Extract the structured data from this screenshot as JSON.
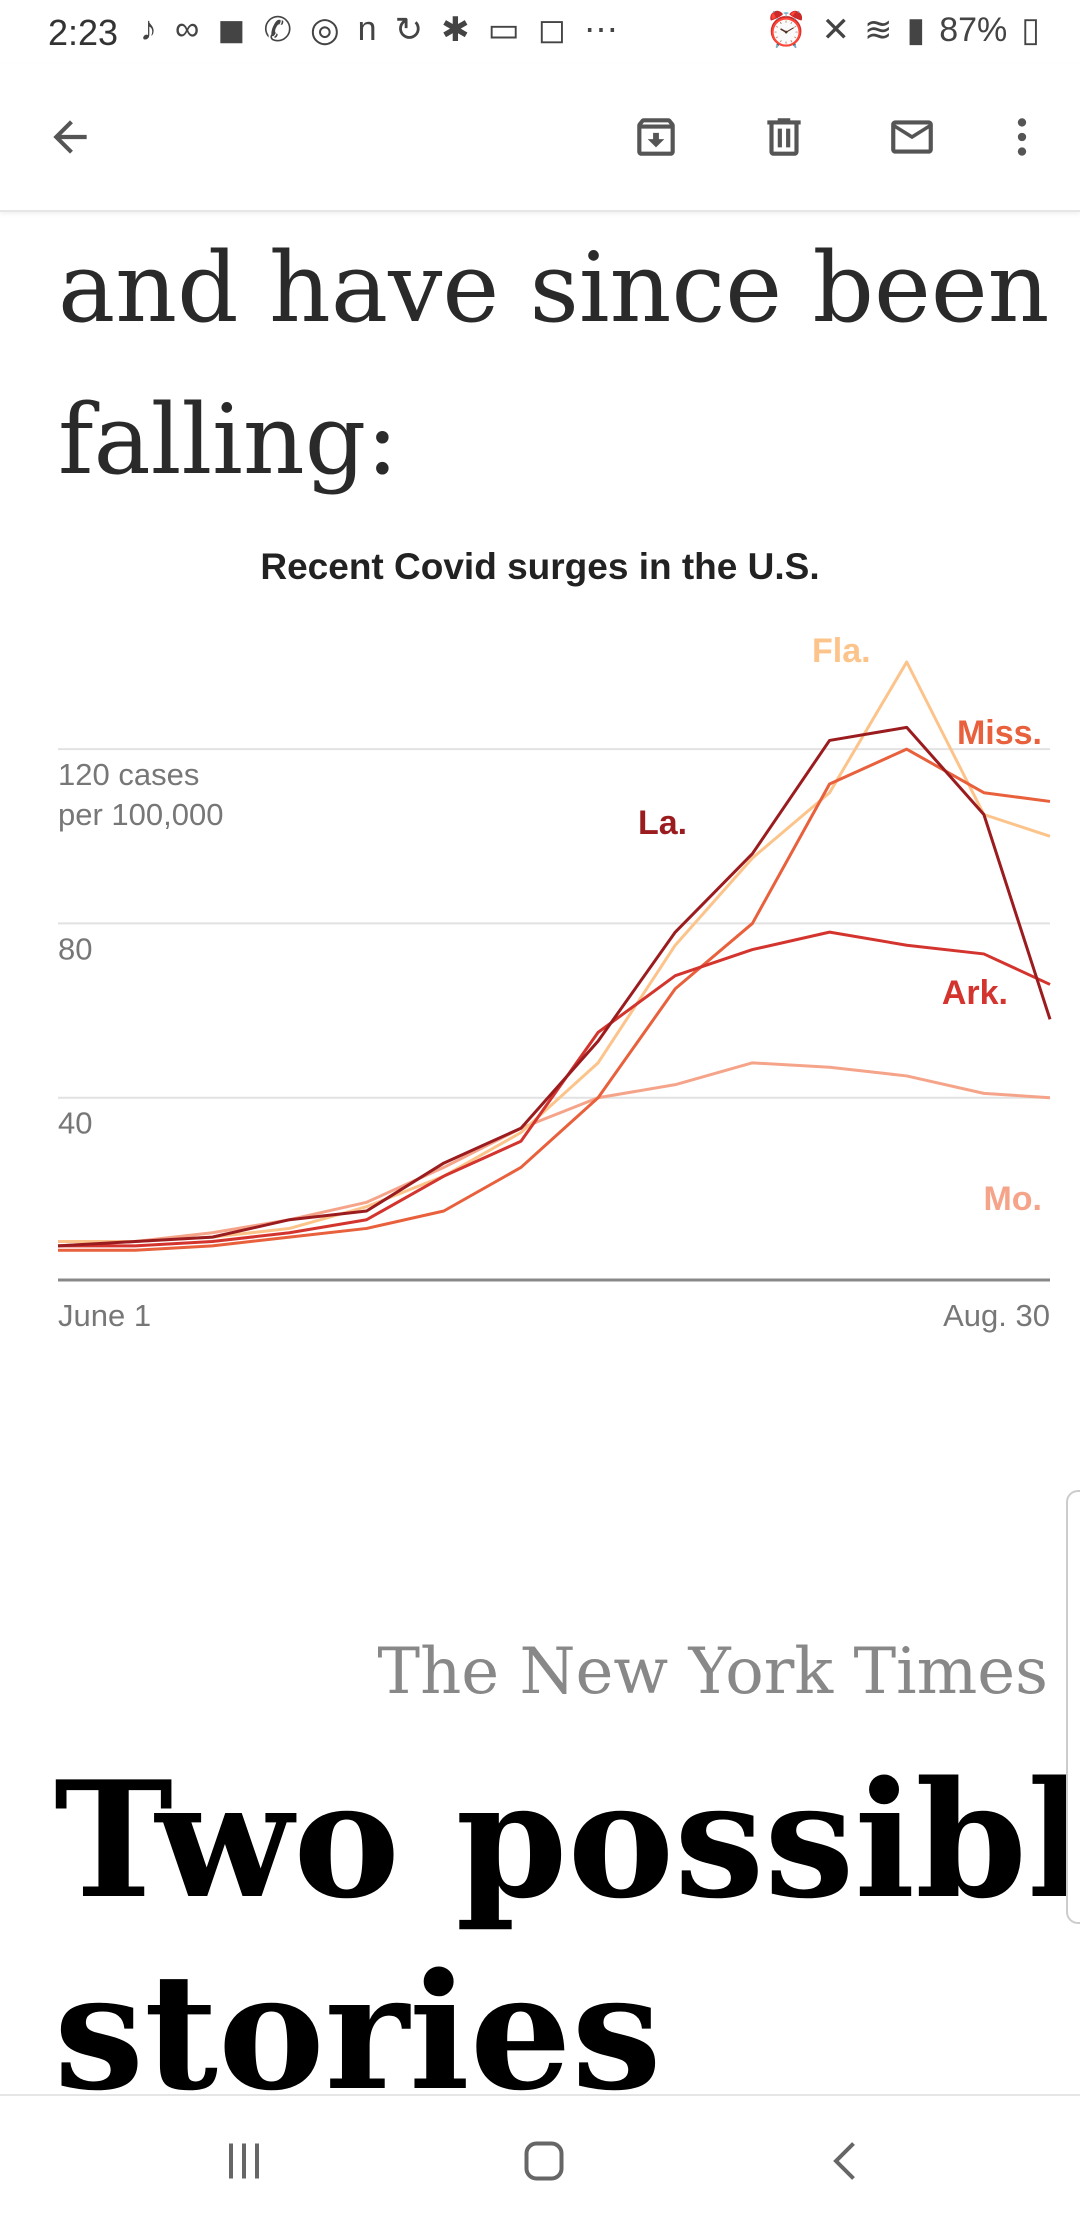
{
  "status_bar": {
    "time": "2:23",
    "left_icons": [
      "music-note-icon",
      "voicemail-icon",
      "shopping-bag-icon",
      "missed-call-icon",
      "app-icon",
      "netflix-icon",
      "sync-icon",
      "yelp-icon",
      "devices-icon",
      "instagram-icon",
      "more-icon"
    ],
    "battery": "87%"
  },
  "app_bar": {
    "actions": [
      "back-arrow-icon",
      "archive-icon",
      "trash-icon",
      "mail-icon",
      "more-vert-icon"
    ]
  },
  "article": {
    "heading_line1": "and have since been",
    "heading_line2": "falling:",
    "credit": "The New York Times",
    "next_heading_line1": "Two possible",
    "next_heading_line2": "stories"
  },
  "chart_data": {
    "type": "line",
    "title": "Recent Covid surges in the U.S.",
    "ylabel_line1": "120 cases",
    "ylabel_line2": "per 100,000",
    "y_ticks": [
      40,
      80
    ],
    "ylim": [
      0,
      140
    ],
    "x_labels": [
      "June 1",
      "Aug. 30"
    ],
    "x": [
      0,
      7,
      14,
      21,
      28,
      35,
      42,
      49,
      56,
      63,
      70,
      77,
      84,
      90
    ],
    "grid": true,
    "series": [
      {
        "name": "La.",
        "color": "#9b1c1f",
        "values": [
          6,
          7,
          8,
          12,
          14,
          25,
          33,
          53,
          78,
          96,
          122,
          125,
          105,
          58
        ]
      },
      {
        "name": "Fla.",
        "color": "#fcc48a",
        "values": [
          7,
          7,
          8,
          10,
          15,
          22,
          32,
          48,
          75,
          95,
          110,
          140,
          105,
          100
        ]
      },
      {
        "name": "Miss.",
        "color": "#e8603c",
        "values": [
          5,
          5,
          6,
          8,
          10,
          14,
          24,
          40,
          65,
          80,
          112,
          120,
          110,
          108
        ]
      },
      {
        "name": "Ark.",
        "color": "#d4342e",
        "values": [
          6,
          6,
          7,
          9,
          12,
          22,
          30,
          55,
          68,
          74,
          78,
          75,
          73,
          66
        ]
      },
      {
        "name": "Mo.",
        "color": "#f5a48a",
        "values": [
          6,
          7,
          9,
          12,
          16,
          24,
          33,
          40,
          43,
          48,
          47,
          45,
          41,
          40
        ]
      }
    ]
  },
  "nav_bar": {
    "buttons": [
      "recent-apps-icon",
      "home-icon",
      "nav-back-icon"
    ]
  }
}
